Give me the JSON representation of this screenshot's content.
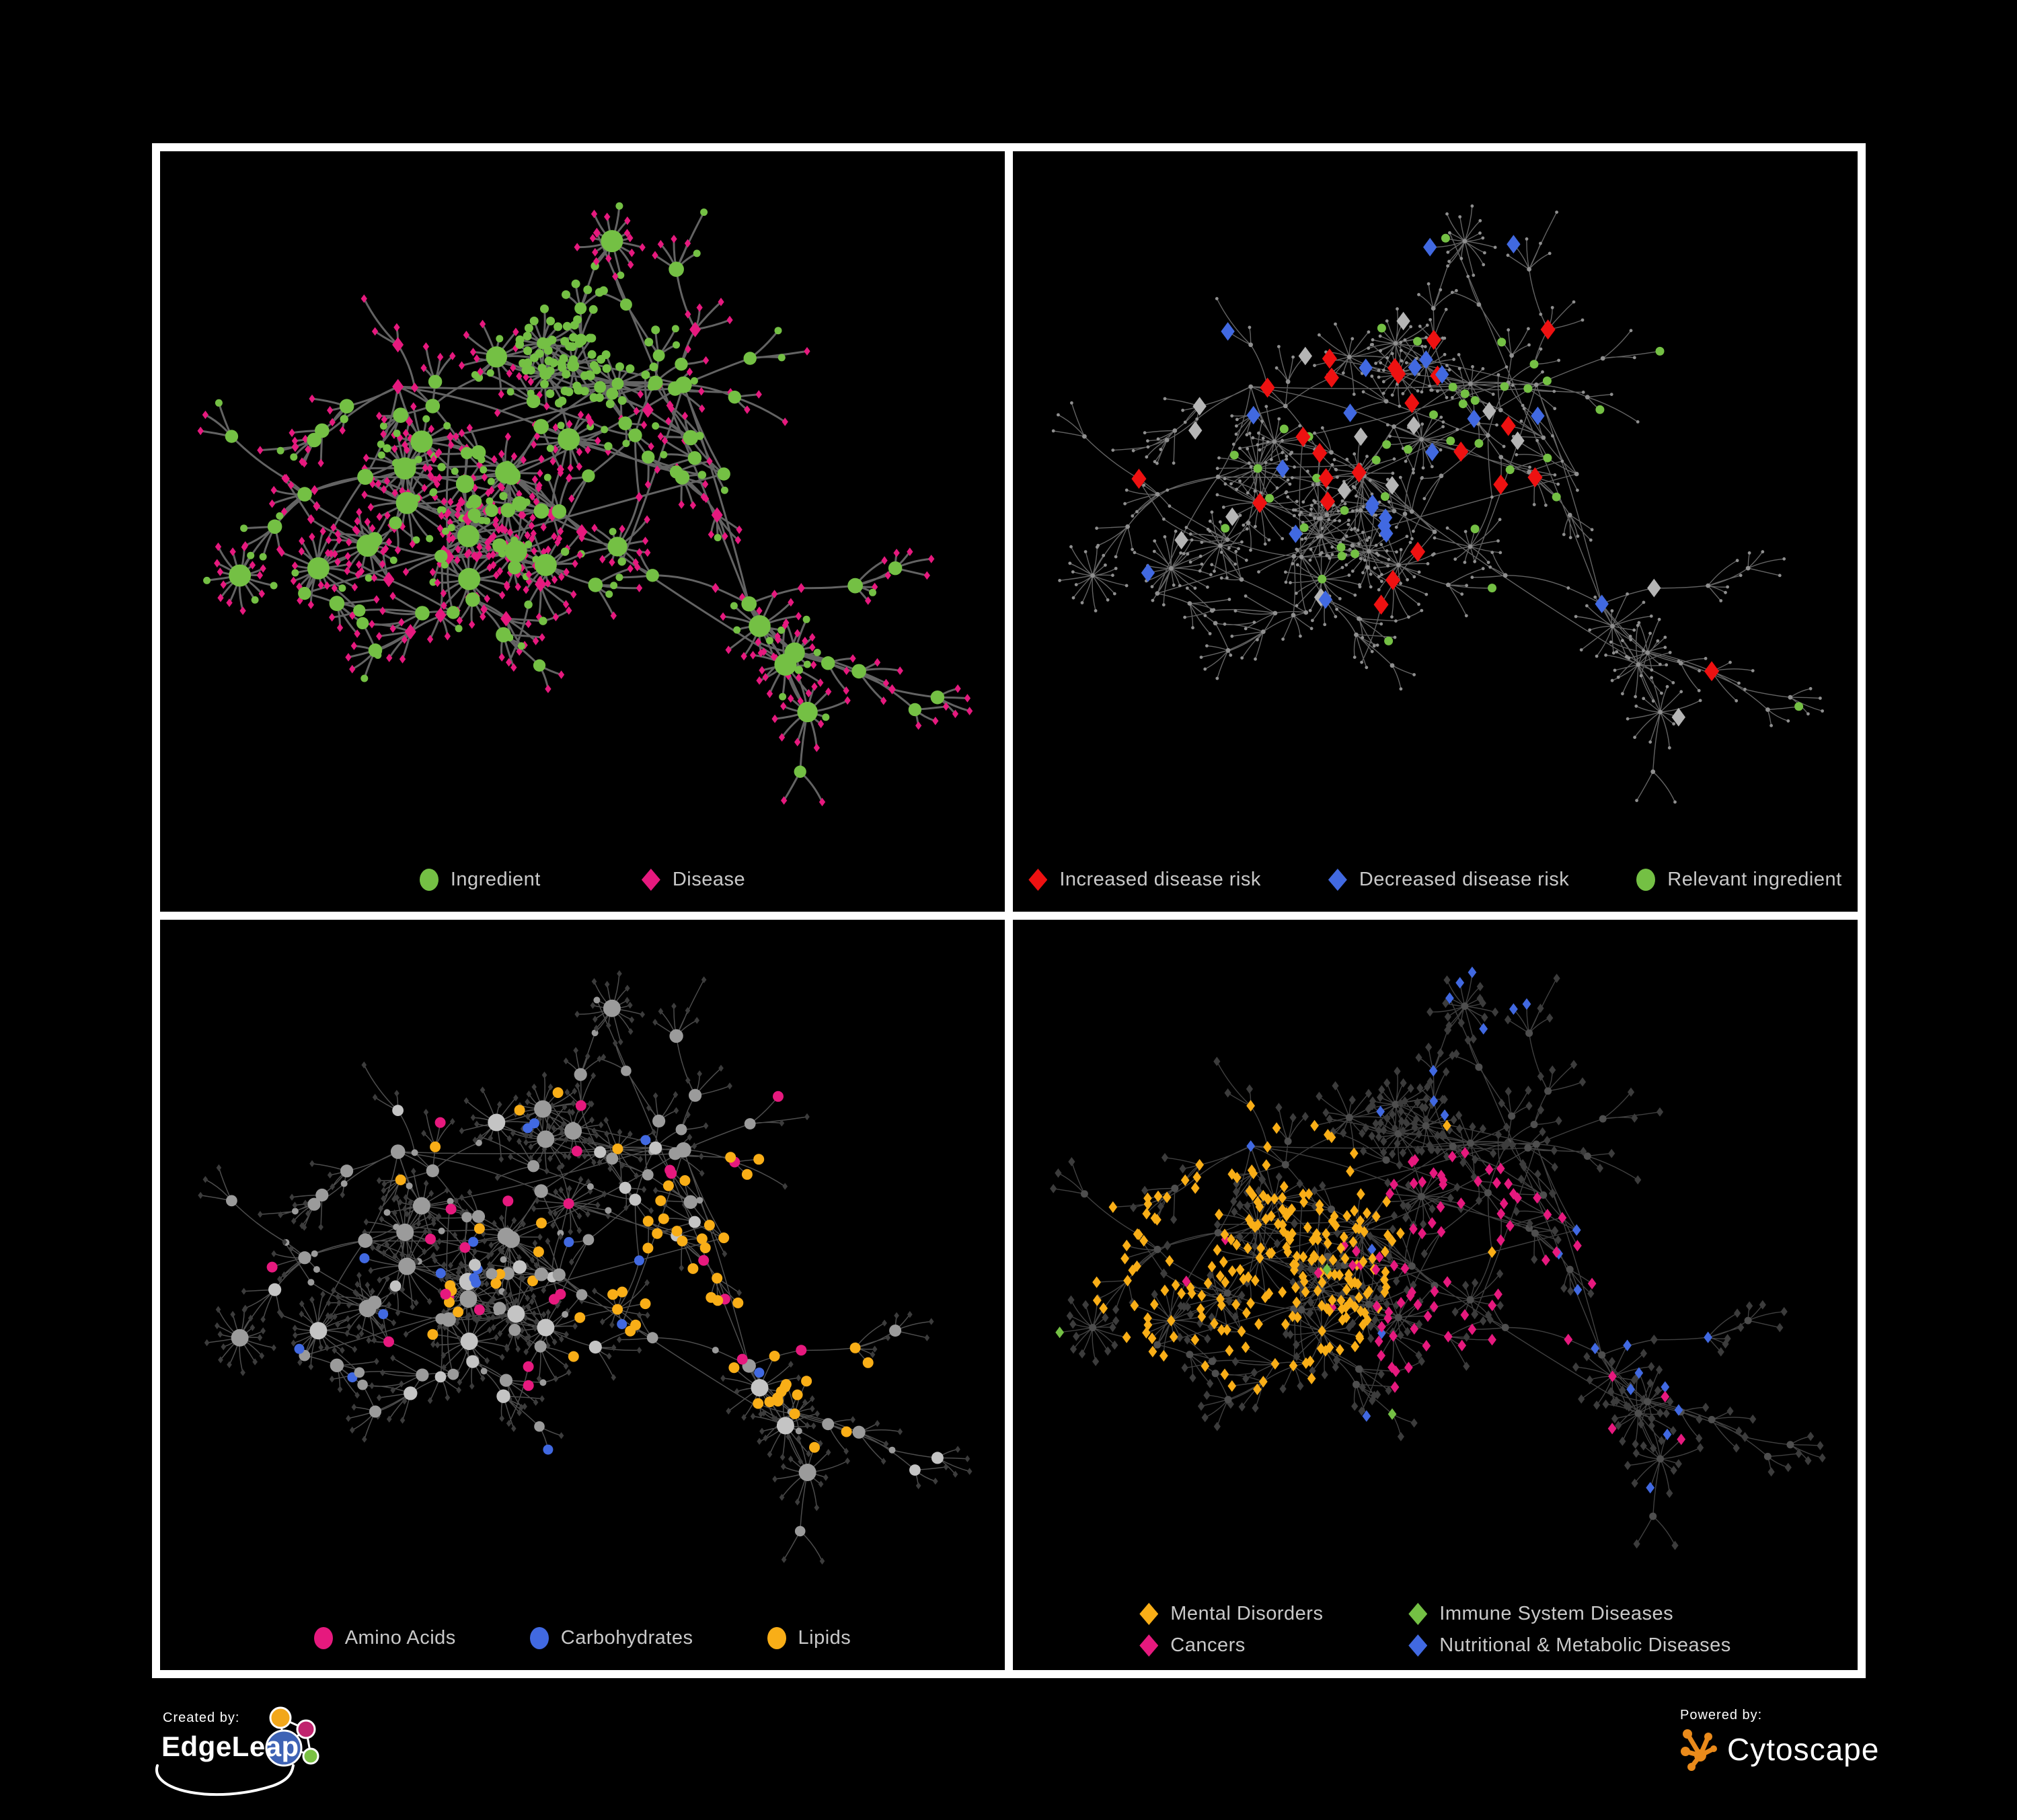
{
  "figure": {
    "background": "#000000",
    "frame_color": "#ffffff",
    "legend_text_color": "#C9C9C9"
  },
  "panels": [
    {
      "id": "ingredient-disease-network",
      "legend": [
        {
          "label": "Ingredient",
          "shape": "circle",
          "color": "#74C044"
        },
        {
          "label": "Disease",
          "shape": "diamond",
          "color": "#E6197E"
        }
      ],
      "net": {
        "edge_color": "#6B6B6B",
        "edge_width": 3,
        "edge_opacity": 0.92,
        "palette": {
          "ingredient": "#74C044",
          "disease": "#E6197E"
        }
      }
    },
    {
      "id": "disease-risk-network",
      "legend": [
        {
          "label": "Increased disease risk",
          "shape": "diamond",
          "color": "#EE1111"
        },
        {
          "label": "Decreased disease risk",
          "shape": "diamond",
          "color": "#4169E1"
        },
        {
          "label": "Relevant ingredient",
          "shape": "circle",
          "color": "#74C044"
        }
      ],
      "net": {
        "edge_color": "#7C7C7C",
        "edge_width": 1.4,
        "edge_opacity": 0.8,
        "palette": {
          "base": "#8F8F8F",
          "increased": "#EE1111",
          "decreased": "#4169E1",
          "neutral": "#B5B5B5",
          "ingredient": "#74C044"
        }
      }
    },
    {
      "id": "nutrient-class-network",
      "legend": [
        {
          "label": "Amino Acids",
          "shape": "circle",
          "color": "#E6197E"
        },
        {
          "label": "Carbohydrates",
          "shape": "circle",
          "color": "#4169E1"
        },
        {
          "label": "Lipids",
          "shape": "circle",
          "color": "#F9AE17"
        }
      ],
      "net": {
        "edge_color": "#8C8C8C",
        "edge_width": 1.5,
        "edge_opacity": 0.55,
        "palette": {
          "leaf": "#3C3C3C",
          "node": "#9B9B9B",
          "hub": "#C4C4C4",
          "amino": "#E6197E",
          "carb": "#4169E1",
          "lipid": "#F9AE17"
        }
      }
    },
    {
      "id": "disease-category-network",
      "legend": [
        {
          "label": "Mental Disorders",
          "shape": "diamond",
          "color": "#F9AE17"
        },
        {
          "label": "Immune System Diseases",
          "shape": "diamond",
          "color": "#74C044"
        },
        {
          "label": "Cancers",
          "shape": "diamond",
          "color": "#E6197E"
        },
        {
          "label": "Nutritional & Metabolic Diseases",
          "shape": "diamond",
          "color": "#4169E1"
        }
      ],
      "net": {
        "edge_color": "#808080",
        "edge_width": 1.4,
        "edge_opacity": 0.5,
        "palette": {
          "base": "#3C3C3C",
          "hub": "#4E4E4E",
          "mental": "#F9AE17",
          "immune": "#74C044",
          "cancer": "#E6197E",
          "metabolic": "#4169E1"
        }
      }
    }
  ],
  "footer": {
    "created_by_label": "Created by:",
    "created_by_brand": "EdgeLeap",
    "powered_by_label": "Powered by:",
    "powered_by_brand": "Cytoscape",
    "edgeleap_logo_colors": {
      "blue": "#3E63B5",
      "orange": "#F2A71B",
      "magenta": "#C0246E",
      "green": "#7AC143"
    },
    "cytoscape_logo_color": "#E98A1B"
  }
}
